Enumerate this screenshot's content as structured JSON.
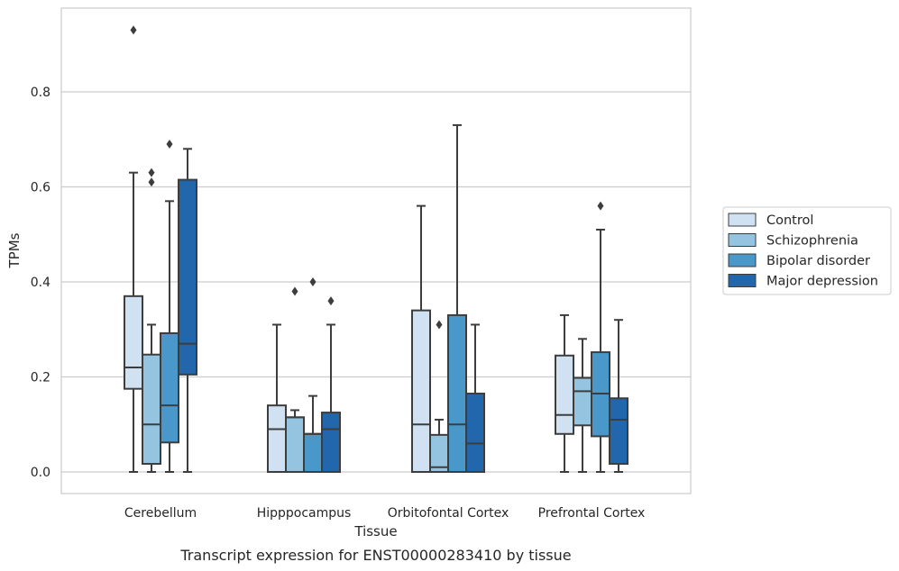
{
  "chart_data": {
    "type": "box",
    "title": "",
    "caption": "Transcript expression for ENST00000283410 by tissue",
    "xlabel": "Tissue",
    "ylabel": "TPMs",
    "ylim": [
      -0.045,
      0.98
    ],
    "yticks": [
      0.0,
      0.2,
      0.4,
      0.6,
      0.8
    ],
    "ytick_labels": [
      "0.0",
      "0.2",
      "0.4",
      "0.6",
      "0.8"
    ],
    "grid": "horizontal",
    "legend_position": "right",
    "categories": [
      "Cerebellum",
      "Hipppocampus",
      "Orbitofontal Cortex",
      "Prefrontal Cortex"
    ],
    "series": [
      {
        "name": "Control",
        "color": "#d0e1f2",
        "boxes": [
          {
            "whisker_low": 0.0,
            "q1": 0.175,
            "median": 0.22,
            "q3": 0.37,
            "whisker_high": 0.63,
            "outliers": [
              0.93
            ]
          },
          {
            "whisker_low": 0.0,
            "q1": 0.0,
            "median": 0.09,
            "q3": 0.14,
            "whisker_high": 0.31,
            "outliers": []
          },
          {
            "whisker_low": 0.0,
            "q1": 0.0,
            "median": 0.1,
            "q3": 0.34,
            "whisker_high": 0.56,
            "outliers": []
          },
          {
            "whisker_low": 0.0,
            "q1": 0.08,
            "median": 0.12,
            "q3": 0.245,
            "whisker_high": 0.33,
            "outliers": []
          }
        ]
      },
      {
        "name": "Schizophrenia",
        "color": "#94c4df",
        "boxes": [
          {
            "whisker_low": 0.0,
            "q1": 0.017,
            "median": 0.1,
            "q3": 0.247,
            "whisker_high": 0.31,
            "outliers": [
              0.61,
              0.63
            ]
          },
          {
            "whisker_low": 0.0,
            "q1": 0.0,
            "median": 0.115,
            "q3": 0.115,
            "whisker_high": 0.13,
            "outliers": [
              0.38
            ]
          },
          {
            "whisker_low": 0.0,
            "q1": 0.0,
            "median": 0.01,
            "q3": 0.078,
            "whisker_high": 0.11,
            "outliers": [
              0.31
            ]
          },
          {
            "whisker_low": 0.0,
            "q1": 0.098,
            "median": 0.17,
            "q3": 0.198,
            "whisker_high": 0.28,
            "outliers": []
          }
        ]
      },
      {
        "name": "Bipolar disorder",
        "color": "#4a98c9",
        "boxes": [
          {
            "whisker_low": 0.0,
            "q1": 0.062,
            "median": 0.14,
            "q3": 0.292,
            "whisker_high": 0.57,
            "outliers": [
              0.69
            ]
          },
          {
            "whisker_low": 0.0,
            "q1": 0.0,
            "median": 0.08,
            "q3": 0.08,
            "whisker_high": 0.16,
            "outliers": [
              0.4
            ]
          },
          {
            "whisker_low": 0.0,
            "q1": 0.0,
            "median": 0.1,
            "q3": 0.33,
            "whisker_high": 0.73,
            "outliers": []
          },
          {
            "whisker_low": 0.0,
            "q1": 0.075,
            "median": 0.165,
            "q3": 0.252,
            "whisker_high": 0.51,
            "outliers": [
              0.56
            ]
          }
        ]
      },
      {
        "name": "Major depression",
        "color": "#2266ac",
        "boxes": [
          {
            "whisker_low": 0.0,
            "q1": 0.205,
            "median": 0.27,
            "q3": 0.615,
            "whisker_high": 0.68,
            "outliers": []
          },
          {
            "whisker_low": 0.0,
            "q1": 0.0,
            "median": 0.09,
            "q3": 0.125,
            "whisker_high": 0.31,
            "outliers": [
              0.36
            ]
          },
          {
            "whisker_low": 0.0,
            "q1": 0.0,
            "median": 0.06,
            "q3": 0.165,
            "whisker_high": 0.31,
            "outliers": []
          },
          {
            "whisker_low": 0.0,
            "q1": 0.017,
            "median": 0.11,
            "q3": 0.155,
            "whisker_high": 0.32,
            "outliers": []
          }
        ]
      }
    ]
  }
}
